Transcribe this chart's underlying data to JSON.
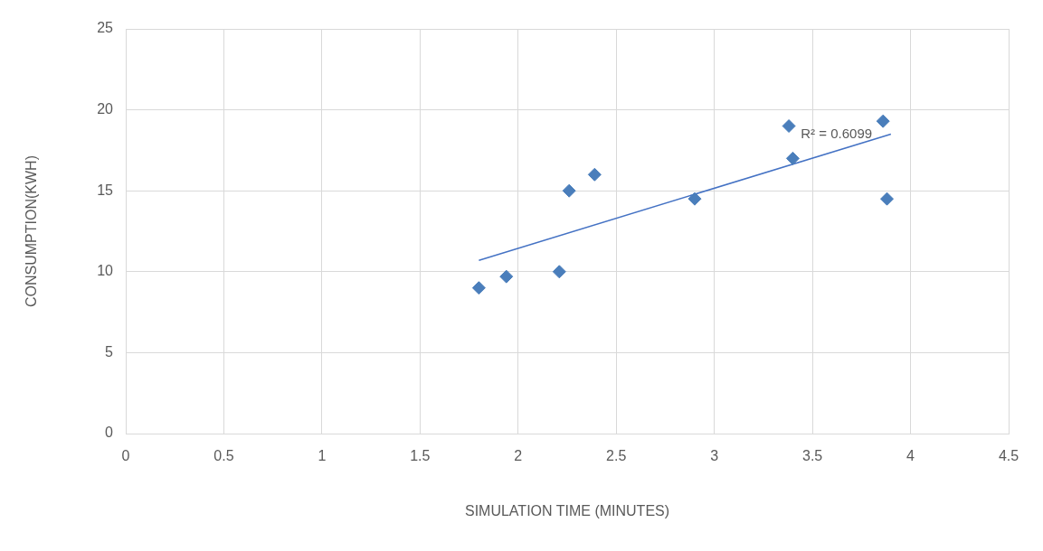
{
  "chart_data": {
    "type": "scatter",
    "xlabel": "SIMULATION TIME (MINUTES)",
    "ylabel": "CONSUMPTION(KWH)",
    "xlim": [
      0,
      4.5
    ],
    "xticks": [
      0,
      0.5,
      1,
      1.5,
      2,
      2.5,
      3,
      3.5,
      4,
      4.5
    ],
    "ylim": [
      0,
      25
    ],
    "yticks": [
      0,
      5,
      10,
      15,
      20,
      25
    ],
    "grid": true,
    "legend": false,
    "marker": "diamond",
    "series": [
      {
        "color": "#4a7ebb",
        "x": [
          1.8,
          1.94,
          2.21,
          2.26,
          2.39,
          2.9,
          3.38,
          3.4,
          3.86,
          3.88
        ],
        "values": [
          9.0,
          9.7,
          10.0,
          15.0,
          16.0,
          14.5,
          19.0,
          17.0,
          19.3,
          14.5
        ]
      },
      {
        "type": "line",
        "color": "#4472c4",
        "marker": "none",
        "line_style": "solid",
        "x": [
          1.8,
          3.9
        ],
        "values": [
          10.7,
          18.5
        ]
      }
    ],
    "annotations": [
      "R² = 0.6099"
    ]
  }
}
